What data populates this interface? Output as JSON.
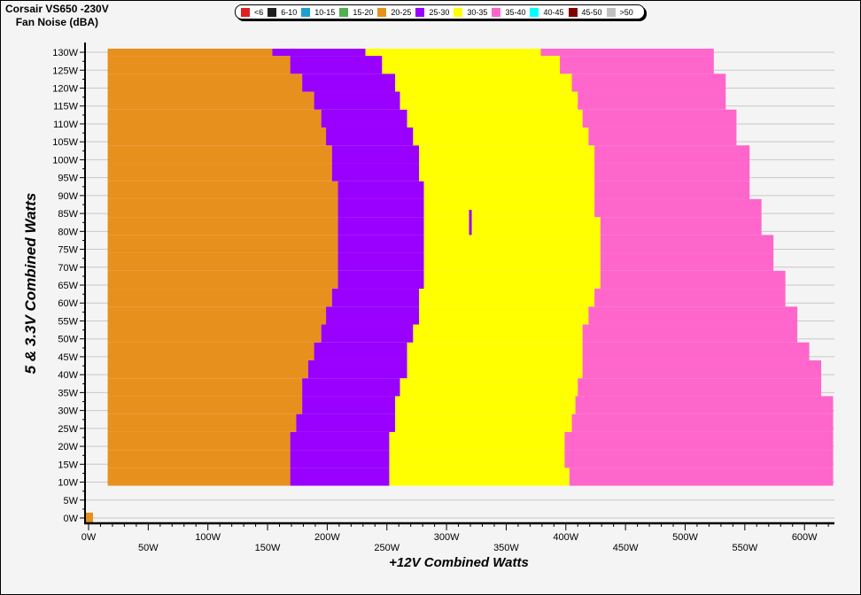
{
  "title": {
    "line1": "Corsair VS650 -230V",
    "line2": "Fan Noise (dBA)"
  },
  "legend": [
    {
      "label": "<6",
      "color": "#e02020"
    },
    {
      "label": "6-10",
      "color": "#202020"
    },
    {
      "label": "10-15",
      "color": "#1ea0d0"
    },
    {
      "label": "15-20",
      "color": "#50b050"
    },
    {
      "label": "20-25",
      "color": "#e8901e"
    },
    {
      "label": "25-30",
      "color": "#9900ff"
    },
    {
      "label": "30-35",
      "color": "#ffff00"
    },
    {
      "label": "35-40",
      "color": "#ff66cc"
    },
    {
      "label": "40-45",
      "color": "#00ffff"
    },
    {
      "label": "45-50",
      "color": "#800000"
    },
    {
      "label": ">50",
      "color": "#c0c0c0"
    }
  ],
  "chart_data": {
    "type": "heatmap",
    "xlabel": "+12V Combined Watts",
    "ylabel": "5 & 3.3V Combined Watts",
    "xlim": [
      0,
      625
    ],
    "ylim": [
      0,
      131
    ],
    "x_ticks": [
      "0W",
      "50W",
      "100W",
      "150W",
      "200W",
      "250W",
      "300W",
      "350W",
      "400W",
      "450W",
      "500W",
      "550W",
      "600W"
    ],
    "y_ticks": [
      "0W",
      "5W",
      "10W",
      "15W",
      "20W",
      "25W",
      "30W",
      "35W",
      "40W",
      "45W",
      "50W",
      "55W",
      "60W",
      "65W",
      "70W",
      "75W",
      "80W",
      "85W",
      "90W",
      "95W",
      "100W",
      "105W",
      "110W",
      "115W",
      "120W",
      "125W",
      "130W"
    ],
    "grid": "horizontal",
    "band_start_w": 16,
    "rows_note_fields": [
      "y_watts",
      "20-25 until",
      "25-30 until",
      "30-35 until",
      "35-40 until"
    ],
    "rows": [
      [
        10,
        169,
        252,
        403,
        624
      ],
      [
        15,
        169,
        252,
        399,
        624
      ],
      [
        20,
        169,
        252,
        399,
        624
      ],
      [
        25,
        174,
        257,
        405,
        624
      ],
      [
        30,
        179,
        257,
        408,
        624
      ],
      [
        35,
        179,
        261,
        410,
        614
      ],
      [
        40,
        184,
        267,
        414,
        614
      ],
      [
        45,
        189,
        267,
        414,
        604
      ],
      [
        50,
        195,
        272,
        414,
        594
      ],
      [
        55,
        199,
        277,
        419,
        594
      ],
      [
        60,
        204,
        277,
        424,
        584
      ],
      [
        65,
        209,
        281,
        429,
        584
      ],
      [
        70,
        209,
        281,
        429,
        574
      ],
      [
        75,
        209,
        281,
        429,
        574
      ],
      [
        80,
        209,
        281,
        429,
        564
      ],
      [
        85,
        209,
        281,
        424,
        564
      ],
      [
        90,
        209,
        281,
        424,
        554
      ],
      [
        95,
        204,
        277,
        424,
        554
      ],
      [
        100,
        204,
        277,
        424,
        554
      ],
      [
        105,
        199,
        272,
        419,
        543
      ],
      [
        110,
        195,
        267,
        414,
        543
      ],
      [
        115,
        189,
        261,
        410,
        534
      ],
      [
        120,
        179,
        257,
        405,
        534
      ],
      [
        125,
        169,
        246,
        395,
        524
      ],
      [
        130,
        154,
        232,
        379,
        524
      ]
    ],
    "points": [
      {
        "x": 0,
        "y": 0,
        "class": "20-25"
      },
      {
        "x": 320,
        "y": 82,
        "class": "25-30"
      }
    ]
  }
}
